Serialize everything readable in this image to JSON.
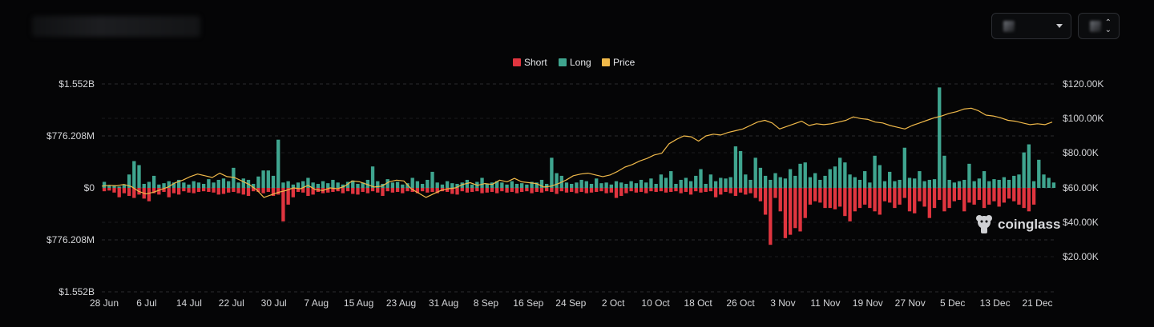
{
  "controls": {
    "interval_icon": "chevron-down-icon",
    "coin_icon": "up-down-arrows-icon"
  },
  "colors": {
    "short": "#e0353f",
    "long": "#3fa58f",
    "price": "#f0b94a",
    "grid": "#2a2b2f",
    "background": "#050506"
  },
  "watermark": {
    "text": "coinglass",
    "icon": "coinglass-logo-icon"
  },
  "chart_data": {
    "type": "bar",
    "legend": [
      {
        "name": "Short",
        "color": "#e0353f"
      },
      {
        "name": "Long",
        "color": "#3fa58f"
      },
      {
        "name": "Price",
        "color": "#f0b94a"
      }
    ],
    "legend_position": "top-center",
    "grid": true,
    "left_axis": {
      "ticks": [
        "$1.552B",
        "$776.208M",
        "$0",
        "$776.208M",
        "$1.552B"
      ],
      "range": [
        -1.552,
        1.552
      ],
      "unit": "B USD"
    },
    "right_axis": {
      "ticks": [
        "$120.00K",
        "$100.00K",
        "$80.00K",
        "$60.00K",
        "$40.00K",
        "$20.00K"
      ],
      "range": [
        0,
        120000
      ]
    },
    "x_ticks": [
      "28 Jun",
      "6 Jul",
      "14 Jul",
      "22 Jul",
      "30 Jul",
      "7 Aug",
      "15 Aug",
      "23 Aug",
      "31 Aug",
      "8 Sep",
      "16 Sep",
      "24 Sep",
      "2 Oct",
      "10 Oct",
      "18 Oct",
      "26 Oct",
      "3 Nov",
      "11 Nov",
      "19 Nov",
      "27 Nov",
      "5 Dec",
      "13 Dec",
      "21 Dec"
    ],
    "x_start": "2024-06-28",
    "series": [
      {
        "name": "Long",
        "values": [
          0.09,
          0.03,
          0.04,
          0.02,
          0.05,
          0.2,
          0.4,
          0.34,
          0.06,
          0.09,
          0.18,
          0.05,
          0.07,
          0.1,
          0.08,
          0.12,
          0.08,
          0.05,
          0.1,
          0.08,
          0.06,
          0.13,
          0.08,
          0.12,
          0.14,
          0.1,
          0.3,
          0.08,
          0.14,
          0.12,
          0.06,
          0.17,
          0.26,
          0.26,
          0.18,
          0.72,
          0.08,
          0.1,
          0.05,
          0.08,
          0.1,
          0.15,
          0.08,
          0.06,
          0.1,
          0.07,
          0.12,
          0.08,
          0.05,
          0.09,
          0.11,
          0.06,
          0.08,
          0.12,
          0.32,
          0.1,
          0.06,
          0.13,
          0.08,
          0.09,
          0.05,
          0.07,
          0.15,
          0.1,
          0.06,
          0.12,
          0.24,
          0.08,
          0.05,
          0.1,
          0.07,
          0.06,
          0.08,
          0.12,
          0.05,
          0.09,
          0.15,
          0.06,
          0.08,
          0.1,
          0.08,
          0.05,
          0.1,
          0.06,
          0.07,
          0.05,
          0.09,
          0.08,
          0.12,
          0.06,
          0.45,
          0.22,
          0.18,
          0.08,
          0.06,
          0.08,
          0.12,
          0.1,
          0.06,
          0.14,
          0.07,
          0.08,
          0.05,
          0.1,
          0.08,
          0.06,
          0.1,
          0.07,
          0.12,
          0.08,
          0.14,
          0.06,
          0.2,
          0.15,
          0.25,
          0.06,
          0.12,
          0.15,
          0.1,
          0.18,
          0.28,
          0.06,
          0.2,
          0.1,
          0.15,
          0.14,
          0.16,
          0.62,
          0.55,
          0.2,
          0.12,
          0.45,
          0.3,
          0.18,
          0.12,
          0.22,
          0.16,
          0.14,
          0.28,
          0.18,
          0.36,
          0.38,
          0.16,
          0.22,
          0.12,
          0.18,
          0.28,
          0.32,
          0.45,
          0.38,
          0.2,
          0.16,
          0.12,
          0.25,
          0.08,
          0.48,
          0.34,
          0.1,
          0.24,
          0.1,
          0.12,
          0.6,
          0.15,
          0.14,
          0.25,
          0.1,
          0.12,
          0.13,
          1.5,
          0.48,
          0.12,
          0.08,
          0.1,
          0.12,
          0.36,
          0.1,
          0.14,
          0.25,
          0.1,
          0.13,
          0.12,
          0.16,
          0.12,
          0.18,
          0.2,
          0.53,
          0.65,
          0.1,
          0.42,
          0.2,
          0.15,
          0.08
        ]
      },
      {
        "name": "Short",
        "values": [
          0.05,
          0.04,
          0.07,
          0.14,
          0.08,
          0.12,
          0.15,
          0.1,
          0.16,
          0.2,
          0.08,
          0.1,
          0.06,
          0.14,
          0.08,
          0.1,
          0.05,
          0.07,
          0.08,
          0.06,
          0.05,
          0.06,
          0.07,
          0.1,
          0.09,
          0.07,
          0.06,
          0.08,
          0.1,
          0.12,
          0.05,
          0.06,
          0.08,
          0.06,
          0.12,
          0.1,
          0.5,
          0.25,
          0.14,
          0.06,
          0.07,
          0.12,
          0.1,
          0.06,
          0.08,
          0.07,
          0.06,
          0.05,
          0.08,
          0.05,
          0.09,
          0.1,
          0.06,
          0.08,
          0.05,
          0.07,
          0.12,
          0.05,
          0.07,
          0.06,
          0.08,
          0.05,
          0.06,
          0.08,
          0.05,
          0.07,
          0.06,
          0.08,
          0.05,
          0.06,
          0.09,
          0.1,
          0.05,
          0.07,
          0.06,
          0.05,
          0.08,
          0.07,
          0.06,
          0.08,
          0.05,
          0.07,
          0.06,
          0.08,
          0.06,
          0.05,
          0.08,
          0.06,
          0.07,
          0.05,
          0.06,
          0.09,
          0.05,
          0.07,
          0.06,
          0.08,
          0.06,
          0.08,
          0.07,
          0.06,
          0.05,
          0.08,
          0.07,
          0.15,
          0.12,
          0.08,
          0.05,
          0.07,
          0.06,
          0.08,
          0.05,
          0.06,
          0.05,
          0.07,
          0.06,
          0.05,
          0.08,
          0.06,
          0.1,
          0.05,
          0.07,
          0.06,
          0.05,
          0.14,
          0.1,
          0.06,
          0.08,
          0.12,
          0.07,
          0.1,
          0.08,
          0.15,
          0.2,
          0.4,
          0.85,
          0.15,
          0.35,
          0.75,
          0.7,
          0.6,
          0.65,
          0.45,
          0.25,
          0.2,
          0.22,
          0.3,
          0.3,
          0.32,
          0.28,
          0.42,
          0.5,
          0.35,
          0.3,
          0.25,
          0.3,
          0.35,
          0.4,
          0.2,
          0.22,
          0.3,
          0.25,
          0.15,
          0.35,
          0.38,
          0.2,
          0.28,
          0.45,
          0.3,
          0.18,
          0.35,
          0.3,
          0.2,
          0.18,
          0.35,
          0.22,
          0.25,
          0.18,
          0.3,
          0.25,
          0.2,
          0.28,
          0.22,
          0.16,
          0.2,
          0.25,
          0.3,
          0.35,
          0.25
        ]
      },
      {
        "name": "Price",
        "values": [
          61000,
          61500,
          61200,
          62000,
          60800,
          58000,
          56500,
          57500,
          59000,
          60500,
          63000,
          64500,
          66500,
          68000,
          67000,
          66000,
          68500,
          66500,
          66000,
          64000,
          62000,
          59000,
          54500,
          56000,
          57500,
          58500,
          60000,
          59500,
          61500,
          59000,
          58500,
          60000,
          59500,
          61000,
          64000,
          63500,
          62000,
          60500,
          61000,
          63500,
          64500,
          64000,
          59500,
          57000,
          54500,
          56500,
          58500,
          59500,
          60000,
          62000,
          63000,
          61500,
          62500,
          62000,
          64500,
          63500,
          65500,
          63500,
          63000,
          62500,
          60500,
          61000,
          62500,
          64500,
          67000,
          68000,
          68500,
          67500,
          66500,
          67500,
          69500,
          72000,
          73500,
          75500,
          77000,
          79000,
          80000,
          85500,
          88000,
          90000,
          89500,
          87000,
          90000,
          91000,
          90500,
          92000,
          93000,
          94000,
          96000,
          98000,
          99000,
          97500,
          94000,
          95500,
          97000,
          98500,
          96000,
          97000,
          96500,
          97000,
          98000,
          99000,
          101000,
          100000,
          99500,
          98000,
          97500,
          96000,
          95000,
          94000,
          96000,
          97500,
          99000,
          100500,
          101500,
          103000,
          104000,
          105500,
          106000,
          104500,
          102000,
          101500,
          100500,
          99000,
          98500,
          97500,
          96500,
          97000,
          96500,
          98000
        ]
      }
    ]
  }
}
